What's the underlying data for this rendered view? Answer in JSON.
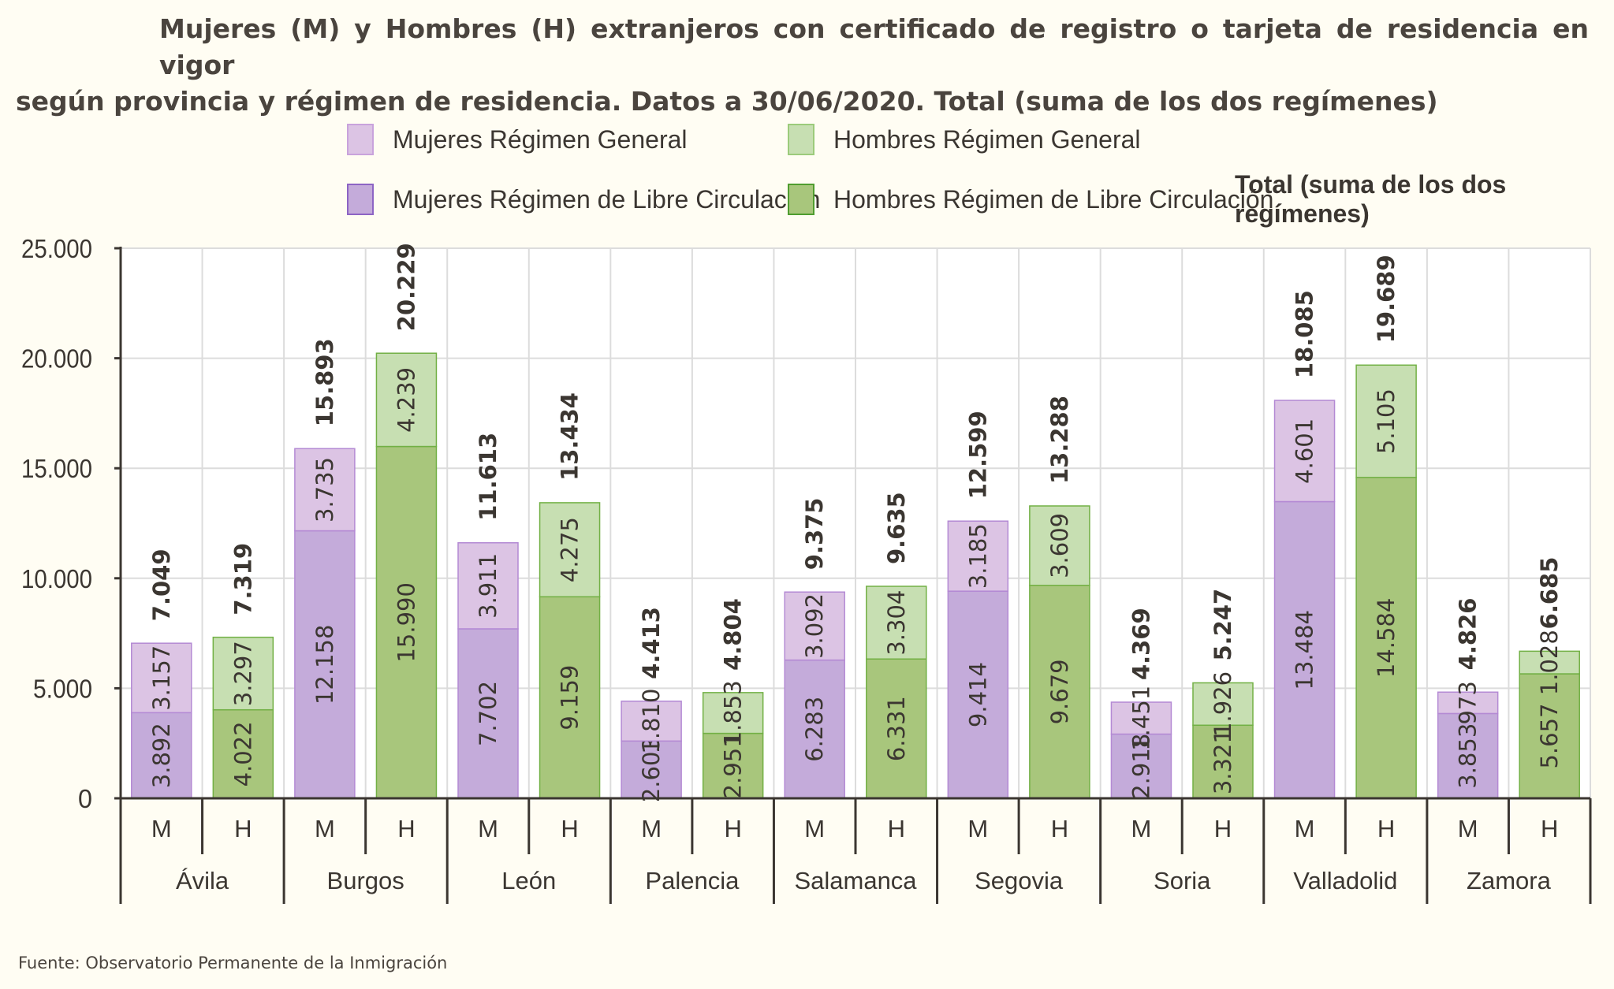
{
  "title": {
    "line1": "Mujeres (M) y Hombres (H) extranjeros con certificado de registro o tarjeta de residencia en vigor",
    "line2": "según provincia y régimen de residencia. Datos a 30/06/2020. Total (suma de los dos regímenes)"
  },
  "legend": {
    "mujeres_general": "Mujeres Régimen General",
    "hombres_general": "Hombres Régimen General",
    "mujeres_libre": "Mujeres Régimen de Libre Circulación",
    "hombres_libre": "Hombres Régimen de Libre Circulación",
    "total": "Total (suma de los dos regímenes)"
  },
  "footer": "Fuente: Observatorio Permanente de la Inmigración",
  "colors": {
    "mujeres_general": "#dcc4e4",
    "mujeres_libre": "#c4abda",
    "hombres_general": "#c7dfb2",
    "hombres_libre": "#a8c67c",
    "mujeres_border": "#b48ad4",
    "hombres_border": "#72b045"
  },
  "chart_data": {
    "type": "bar",
    "stacked": true,
    "ylim": [
      0,
      25000
    ],
    "yticks": [
      "0",
      "5.000",
      "10.000",
      "15.000",
      "20.000",
      "25.000"
    ],
    "grid": true,
    "legend_position": "top",
    "categories": [
      "Ávila",
      "Burgos",
      "León",
      "Palencia",
      "Salamanca",
      "Segovia",
      "Soria",
      "Valladolid",
      "Zamora"
    ],
    "sublabels": [
      "M",
      "H"
    ],
    "series": [
      {
        "name": "Mujeres Régimen de Libre Circulación",
        "group": "M",
        "values": [
          3892,
          12158,
          7702,
          2603,
          6283,
          9414,
          2918,
          13484,
          3853
        ]
      },
      {
        "name": "Mujeres Régimen General",
        "group": "M",
        "values": [
          3157,
          3735,
          3911,
          1810,
          3092,
          3185,
          1451,
          4601,
          973
        ]
      },
      {
        "name": "Hombres Régimen de Libre Circulación",
        "group": "H",
        "values": [
          4022,
          15990,
          9159,
          2951,
          6331,
          9679,
          3321,
          14584,
          5657
        ]
      },
      {
        "name": "Hombres Régimen General",
        "group": "H",
        "values": [
          3297,
          4239,
          4275,
          1853,
          3304,
          3609,
          1926,
          5105,
          1028
        ]
      }
    ],
    "totals": {
      "M": [
        7049,
        15893,
        11613,
        4413,
        9375,
        12599,
        4369,
        18085,
        4826
      ],
      "H": [
        7319,
        20229,
        13434,
        4804,
        9635,
        13288,
        5247,
        19689,
        6685
      ]
    }
  }
}
